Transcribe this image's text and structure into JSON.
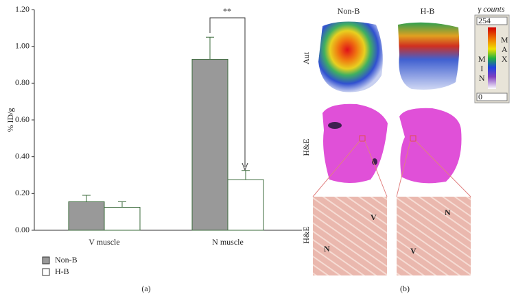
{
  "chart_data": {
    "type": "bar",
    "y_label": "% ID/g",
    "categories": [
      "V muscle",
      "N muscle"
    ],
    "series": [
      {
        "name": "Non-B",
        "color": "#999999",
        "values": [
          0.155,
          0.93
        ],
        "errors": [
          0.035,
          0.12
        ]
      },
      {
        "name": "H-B",
        "color": "#ffffff",
        "values": [
          0.125,
          0.275
        ],
        "errors": [
          0.03,
          0.05
        ]
      }
    ],
    "ylim": [
      0,
      1.2
    ],
    "yticks": [
      {
        "value": 0,
        "label": "0.00"
      },
      {
        "value": 0.2,
        "label": "0.20"
      },
      {
        "value": 0.4,
        "label": "0.40"
      },
      {
        "value": 0.6,
        "label": "0.60"
      },
      {
        "value": 0.8,
        "label": "0.80"
      },
      {
        "value": 1,
        "label": "1.00"
      },
      {
        "value": 1.2,
        "label": "1.20"
      }
    ],
    "annotation": "**",
    "legend": "bottom-left",
    "panel_label": "(a)"
  },
  "panel_b": {
    "panel_label": "(b)",
    "columns": [
      "Non-B",
      "H-B"
    ],
    "rows": [
      "Aut",
      "H&E",
      "H&E"
    ],
    "colorbar": {
      "title": "γ counts",
      "max": 254,
      "min": 0,
      "min_label": "MIN",
      "max_label": "MAX"
    },
    "micro_labels": [
      [
        "V",
        "N"
      ],
      [
        "N",
        "V"
      ]
    ]
  }
}
